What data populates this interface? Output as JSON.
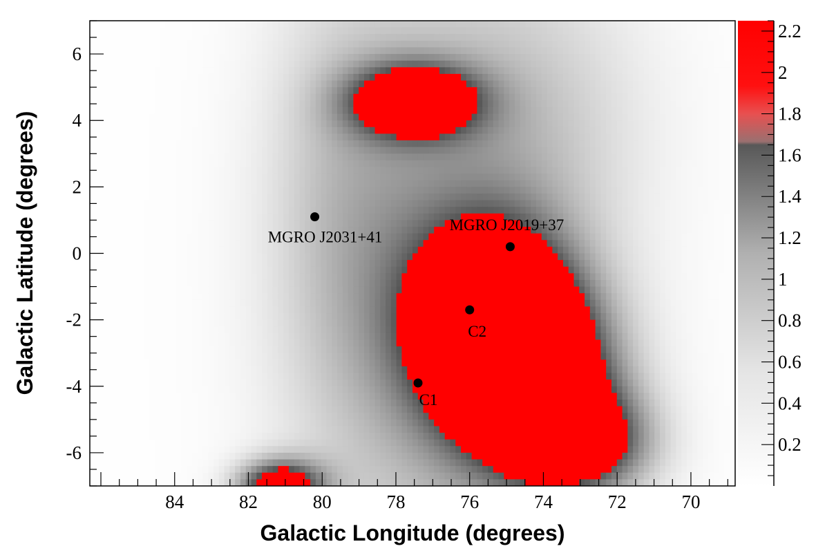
{
  "chart_data": {
    "type": "heatmap",
    "xlabel": "Galactic Longitude (degrees)",
    "ylabel": "Galactic Latitude (degrees)",
    "xlim": [
      86.3,
      68.8
    ],
    "ylim": [
      -7,
      7
    ],
    "x_ticks": [
      84,
      82,
      80,
      78,
      76,
      74,
      72,
      70
    ],
    "y_ticks": [
      6,
      4,
      2,
      0,
      -2,
      -4,
      -6
    ],
    "colorbar": {
      "range": [
        0,
        2.25
      ],
      "ticks": [
        "0.2",
        "0.4",
        "0.6",
        "0.8",
        "1",
        "1.2",
        "1.4",
        "1.6",
        "1.8",
        "2",
        "2.2"
      ],
      "threshold": 1.65,
      "low_color": "#ffffff",
      "mid_color": "#5a5a5a",
      "high_color": "#ff0000"
    },
    "markers": [
      {
        "label": "MGRO J2031+41",
        "l": 80.2,
        "b": 1.1
      },
      {
        "label": "MGRO J2019+37",
        "l": 74.9,
        "b": 0.2
      },
      {
        "label": "C2",
        "l": 76.0,
        "b": -1.7
      },
      {
        "label": "C1",
        "l": 77.4,
        "b": -3.9
      }
    ]
  }
}
